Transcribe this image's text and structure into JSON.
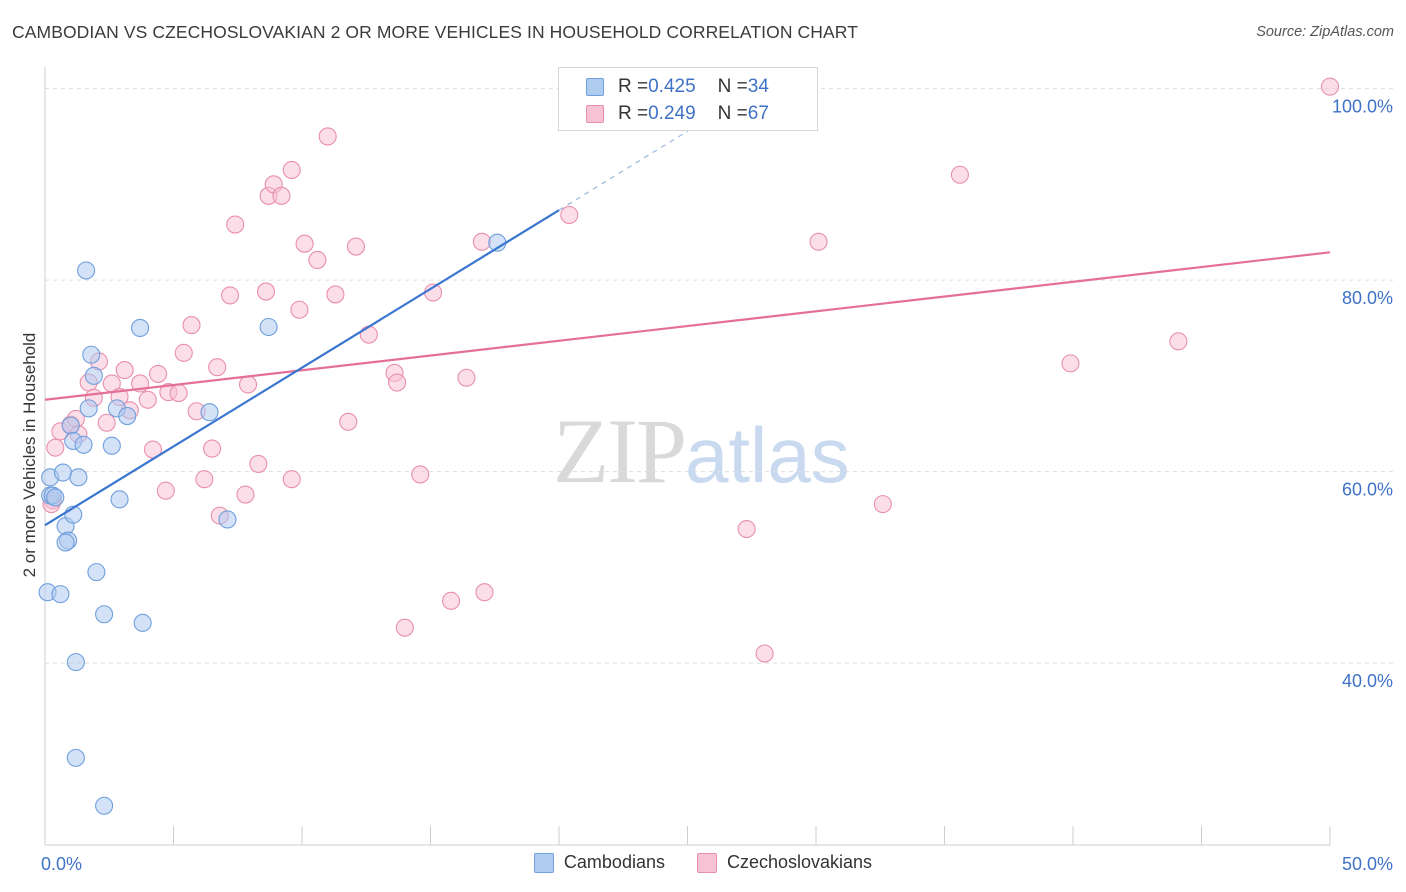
{
  "header": {
    "title": "CAMBODIAN VS CZECHOSLOVAKIAN 2 OR MORE VEHICLES IN HOUSEHOLD CORRELATION CHART",
    "source": "Source: ZipAtlas.com"
  },
  "watermark": {
    "zip": "ZIP",
    "atlas": "atlas"
  },
  "legend_top": [
    {
      "r_label": "R = ",
      "r_value": "0.425",
      "n_label": "N = ",
      "n_value": "34"
    },
    {
      "r_label": "R = ",
      "r_value": "0.249",
      "n_label": "N = ",
      "n_value": "67"
    }
  ],
  "legend_bottom": [
    {
      "label": "Cambodians"
    },
    {
      "label": "Czechoslovakians"
    }
  ],
  "colors": {
    "cambodian_fill": "#aecbf0",
    "cambodian_stroke": "#6f9fdc",
    "cambodian_line": "#3a76d0",
    "czech_fill": "#f7c3d4",
    "czech_stroke": "#e88fae",
    "czech_line": "#e46f98",
    "tick_label": "#3f72c7",
    "grid": "#dddddd"
  },
  "chart_data": {
    "type": "scatter",
    "title": "CAMBODIAN VS CZECHOSLOVAKIAN 2 OR MORE VEHICLES IN HOUSEHOLD CORRELATION CHART",
    "xlabel": "",
    "ylabel": "2 or more Vehicles in Household",
    "xlim": [
      0,
      50
    ],
    "ylim": [
      21,
      102
    ],
    "x_tick_labels": [
      {
        "value": 0,
        "label": "0.0%"
      },
      {
        "value": 50,
        "label": "50.0%"
      }
    ],
    "y_tick_labels": [
      {
        "value": 40,
        "label": "40.0%"
      },
      {
        "value": 60,
        "label": "60.0%"
      },
      {
        "value": 80,
        "label": "80.0%"
      },
      {
        "value": 100,
        "label": "100.0%"
      }
    ],
    "grid": true,
    "legend_position": "top-center",
    "series": [
      {
        "name": "Cambodians",
        "r": 0.425,
        "n": 34,
        "trend": {
          "x": [
            0,
            20
          ],
          "y": [
            54.4,
            87.3
          ],
          "dashed_to": [
            26,
            97.2
          ]
        },
        "points": [
          [
            0.2,
            59.4
          ],
          [
            0.2,
            57.5
          ],
          [
            0.1,
            47.4
          ],
          [
            0.3,
            57.5
          ],
          [
            0.4,
            57.3
          ],
          [
            0.6,
            47.2
          ],
          [
            0.7,
            59.9
          ],
          [
            0.8,
            54.3
          ],
          [
            0.9,
            52.8
          ],
          [
            0.8,
            52.6
          ],
          [
            1.0,
            64.8
          ],
          [
            1.1,
            63.2
          ],
          [
            1.1,
            55.5
          ],
          [
            1.2,
            40.1
          ],
          [
            1.3,
            59.4
          ],
          [
            1.5,
            62.8
          ],
          [
            1.6,
            81.0
          ],
          [
            1.7,
            66.6
          ],
          [
            1.8,
            72.2
          ],
          [
            1.9,
            70.0
          ],
          [
            2.0,
            49.5
          ],
          [
            2.3,
            45.1
          ],
          [
            1.2,
            30.1
          ],
          [
            2.3,
            25.1
          ],
          [
            2.6,
            62.7
          ],
          [
            2.8,
            66.6
          ],
          [
            2.9,
            57.1
          ],
          [
            3.2,
            65.8
          ],
          [
            3.7,
            75.0
          ],
          [
            3.8,
            44.2
          ],
          [
            6.4,
            66.2
          ],
          [
            7.1,
            55.0
          ],
          [
            8.7,
            75.1
          ],
          [
            17.6,
            83.9
          ]
        ]
      },
      {
        "name": "Czechoslovakians",
        "r": 0.249,
        "n": 67,
        "trend": {
          "x": [
            0,
            50
          ],
          "y": [
            67.5,
            82.9
          ]
        },
        "points": [
          [
            0.3,
            57.0
          ],
          [
            0.4,
            62.5
          ],
          [
            0.6,
            64.2
          ],
          [
            1.0,
            64.9
          ],
          [
            1.2,
            65.5
          ],
          [
            1.3,
            63.9
          ],
          [
            1.7,
            69.3
          ],
          [
            1.9,
            67.7
          ],
          [
            2.1,
            71.5
          ],
          [
            2.4,
            65.1
          ],
          [
            2.6,
            69.2
          ],
          [
            2.9,
            67.8
          ],
          [
            3.1,
            70.6
          ],
          [
            3.3,
            66.4
          ],
          [
            3.7,
            69.2
          ],
          [
            4.0,
            67.5
          ],
          [
            4.2,
            62.3
          ],
          [
            4.4,
            70.2
          ],
          [
            4.7,
            58.0
          ],
          [
            4.8,
            68.3
          ],
          [
            5.2,
            68.2
          ],
          [
            5.4,
            72.4
          ],
          [
            5.7,
            75.3
          ],
          [
            5.9,
            66.3
          ],
          [
            6.2,
            59.2
          ],
          [
            6.5,
            62.4
          ],
          [
            6.7,
            70.9
          ],
          [
            6.8,
            55.4
          ],
          [
            7.2,
            78.4
          ],
          [
            7.4,
            85.8
          ],
          [
            7.8,
            57.6
          ],
          [
            7.9,
            69.1
          ],
          [
            8.3,
            60.8
          ],
          [
            8.6,
            78.8
          ],
          [
            8.7,
            88.8
          ],
          [
            8.9,
            90.0
          ],
          [
            9.2,
            88.8
          ],
          [
            9.6,
            59.2
          ],
          [
            9.6,
            91.5
          ],
          [
            9.9,
            76.9
          ],
          [
            10.1,
            83.8
          ],
          [
            10.6,
            82.1
          ],
          [
            11.0,
            95.0
          ],
          [
            11.3,
            78.5
          ],
          [
            11.8,
            65.2
          ],
          [
            12.1,
            83.5
          ],
          [
            12.6,
            74.3
          ],
          [
            13.6,
            70.3
          ],
          [
            13.7,
            69.3
          ],
          [
            14.0,
            43.7
          ],
          [
            14.6,
            59.7
          ],
          [
            15.1,
            78.7
          ],
          [
            15.8,
            46.5
          ],
          [
            16.4,
            69.8
          ],
          [
            17.0,
            84.0
          ],
          [
            17.1,
            47.4
          ],
          [
            20.4,
            86.8
          ],
          [
            23.3,
            100.5
          ],
          [
            27.3,
            54.0
          ],
          [
            28.0,
            41.0
          ],
          [
            30.1,
            84.0
          ],
          [
            32.6,
            56.6
          ],
          [
            35.6,
            91.0
          ],
          [
            39.9,
            71.3
          ],
          [
            44.1,
            73.6
          ],
          [
            50.0,
            100.2
          ],
          [
            0.25,
            56.6
          ]
        ]
      }
    ]
  }
}
